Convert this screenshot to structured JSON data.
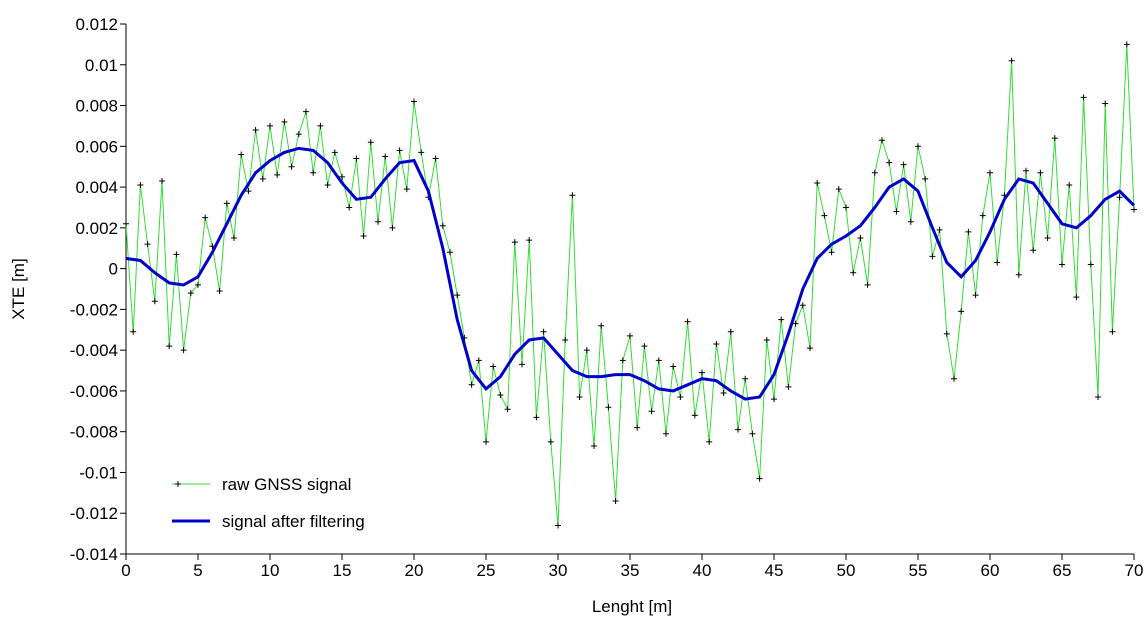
{
  "chart_data": {
    "type": "line",
    "xlabel": "Lenght [m]",
    "ylabel": "XTE [m]",
    "xlim": [
      0,
      70
    ],
    "xticks": [
      0,
      5,
      10,
      15,
      20,
      25,
      30,
      35,
      40,
      45,
      50,
      55,
      60,
      65,
      70
    ],
    "ylim": [
      -0.014,
      0.012
    ],
    "yticks": [
      -0.014,
      -0.012,
      -0.01,
      -0.008,
      -0.006,
      -0.004,
      -0.002,
      0,
      0.002,
      0.004,
      0.006,
      0.008,
      0.01,
      0.012
    ],
    "legend": "lower left",
    "series": [
      {
        "name": "raw GNSS signal",
        "color": "#33dd33",
        "marker": "+",
        "marker_color": "#000000",
        "x": [
          0,
          0.5,
          1,
          1.5,
          2,
          2.5,
          3,
          3.5,
          4,
          4.5,
          5,
          5.5,
          6,
          6.5,
          7,
          7.5,
          8,
          8.5,
          9,
          9.5,
          10,
          10.5,
          11,
          11.5,
          12,
          12.5,
          13,
          13.5,
          14,
          14.5,
          15,
          15.5,
          16,
          16.5,
          17,
          17.5,
          18,
          18.5,
          19,
          19.5,
          20,
          20.5,
          21,
          21.5,
          22,
          22.5,
          23,
          23.5,
          24,
          24.5,
          25,
          25.5,
          26,
          26.5,
          27,
          27.5,
          28,
          28.5,
          29,
          29.5,
          30,
          30.5,
          31,
          31.5,
          32,
          32.5,
          33,
          33.5,
          34,
          34.5,
          35,
          35.5,
          36,
          36.5,
          37,
          37.5,
          38,
          38.5,
          39,
          39.5,
          40,
          40.5,
          41,
          41.5,
          42,
          42.5,
          43,
          43.5,
          44,
          44.5,
          45,
          45.5,
          46,
          46.5,
          47,
          47.5,
          48,
          48.5,
          49,
          49.5,
          50,
          50.5,
          51,
          51.5,
          52,
          52.5,
          53,
          53.5,
          54,
          54.5,
          55,
          55.5,
          56,
          56.5,
          57,
          57.5,
          58,
          58.5,
          59,
          59.5,
          60,
          60.5,
          61,
          61.5,
          62,
          62.5,
          63,
          63.5,
          64,
          64.5,
          65,
          65.5,
          66,
          66.5,
          67,
          67.5,
          68,
          68.5,
          69,
          69.5,
          70
        ],
        "values": [
          0.0022,
          -0.0031,
          0.0041,
          0.0012,
          -0.0016,
          0.0043,
          -0.0038,
          0.0007,
          -0.004,
          -0.0012,
          -0.0008,
          0.0025,
          0.0011,
          -0.0011,
          0.0032,
          0.0015,
          0.0056,
          0.0038,
          0.0068,
          0.0044,
          0.007,
          0.0046,
          0.0072,
          0.005,
          0.0066,
          0.0077,
          0.0047,
          0.007,
          0.0041,
          0.0057,
          0.0045,
          0.003,
          0.0054,
          0.0016,
          0.0062,
          0.0023,
          0.0055,
          0.002,
          0.0058,
          0.0039,
          0.0082,
          0.0057,
          0.0035,
          0.0054,
          0.0021,
          0.0008,
          -0.0013,
          -0.0034,
          -0.0057,
          -0.0045,
          -0.0085,
          -0.0048,
          -0.0062,
          -0.0069,
          0.0013,
          -0.0047,
          0.0014,
          -0.0073,
          -0.0031,
          -0.0085,
          -0.0126,
          -0.0035,
          0.0036,
          -0.0063,
          -0.004,
          -0.0087,
          -0.0028,
          -0.0068,
          -0.0114,
          -0.0045,
          -0.0033,
          -0.0078,
          -0.0038,
          -0.007,
          -0.0045,
          -0.0081,
          -0.0048,
          -0.0063,
          -0.0026,
          -0.0072,
          -0.0051,
          -0.0085,
          -0.0037,
          -0.0061,
          -0.0031,
          -0.0079,
          -0.0054,
          -0.0081,
          -0.0103,
          -0.0035,
          -0.0064,
          -0.0025,
          -0.0058,
          -0.0027,
          -0.0018,
          -0.0039,
          0.0042,
          0.0026,
          0.0008,
          0.0039,
          0.003,
          -0.0002,
          0.0015,
          -0.0008,
          0.0047,
          0.0063,
          0.0052,
          0.0028,
          0.0051,
          0.0023,
          0.006,
          0.0044,
          0.0006,
          0.0019,
          -0.0032,
          -0.0054,
          -0.0021,
          0.0018,
          -0.0013,
          0.0026,
          0.0047,
          0.0003,
          0.0036,
          0.0102,
          -0.0003,
          0.0048,
          0.0009,
          0.0047,
          0.0015,
          0.0064,
          0.0002,
          0.0041,
          -0.0014,
          0.0084,
          0.0002,
          -0.0063,
          0.0081,
          -0.0031,
          0.0035,
          0.011,
          0.0029
        ]
      },
      {
        "name": "signal after filtering",
        "color": "#0000cc",
        "x": [
          0,
          1,
          2,
          3,
          4,
          5,
          6,
          7,
          8,
          9,
          10,
          11,
          12,
          13,
          14,
          15,
          16,
          17,
          18,
          19,
          20,
          21,
          22,
          23,
          24,
          25,
          26,
          27,
          28,
          29,
          30,
          31,
          32,
          33,
          34,
          35,
          36,
          37,
          38,
          39,
          40,
          41,
          42,
          43,
          44,
          45,
          46,
          47,
          48,
          49,
          50,
          51,
          52,
          53,
          54,
          55,
          56,
          57,
          58,
          59,
          60,
          61,
          62,
          63,
          64,
          65,
          66,
          67,
          68,
          69,
          70
        ],
        "values": [
          0.0005,
          0.0004,
          -0.0002,
          -0.0007,
          -0.0008,
          -0.0004,
          0.0008,
          0.0022,
          0.0036,
          0.0047,
          0.0053,
          0.0057,
          0.0059,
          0.0058,
          0.0052,
          0.0042,
          0.0034,
          0.0035,
          0.0044,
          0.0052,
          0.0053,
          0.0038,
          0.001,
          -0.0025,
          -0.005,
          -0.0059,
          -0.0053,
          -0.0042,
          -0.0035,
          -0.0034,
          -0.0042,
          -0.005,
          -0.0053,
          -0.0053,
          -0.0052,
          -0.0052,
          -0.0055,
          -0.0059,
          -0.006,
          -0.0057,
          -0.0054,
          -0.0055,
          -0.006,
          -0.0064,
          -0.0063,
          -0.0052,
          -0.0032,
          -0.001,
          0.0005,
          0.0012,
          0.0016,
          0.0021,
          0.003,
          0.004,
          0.0044,
          0.0038,
          0.002,
          0.0003,
          -0.0004,
          0.0004,
          0.0018,
          0.0034,
          0.0044,
          0.0042,
          0.0032,
          0.0022,
          0.002,
          0.0026,
          0.0034,
          0.0038,
          0.0031
        ]
      }
    ]
  }
}
